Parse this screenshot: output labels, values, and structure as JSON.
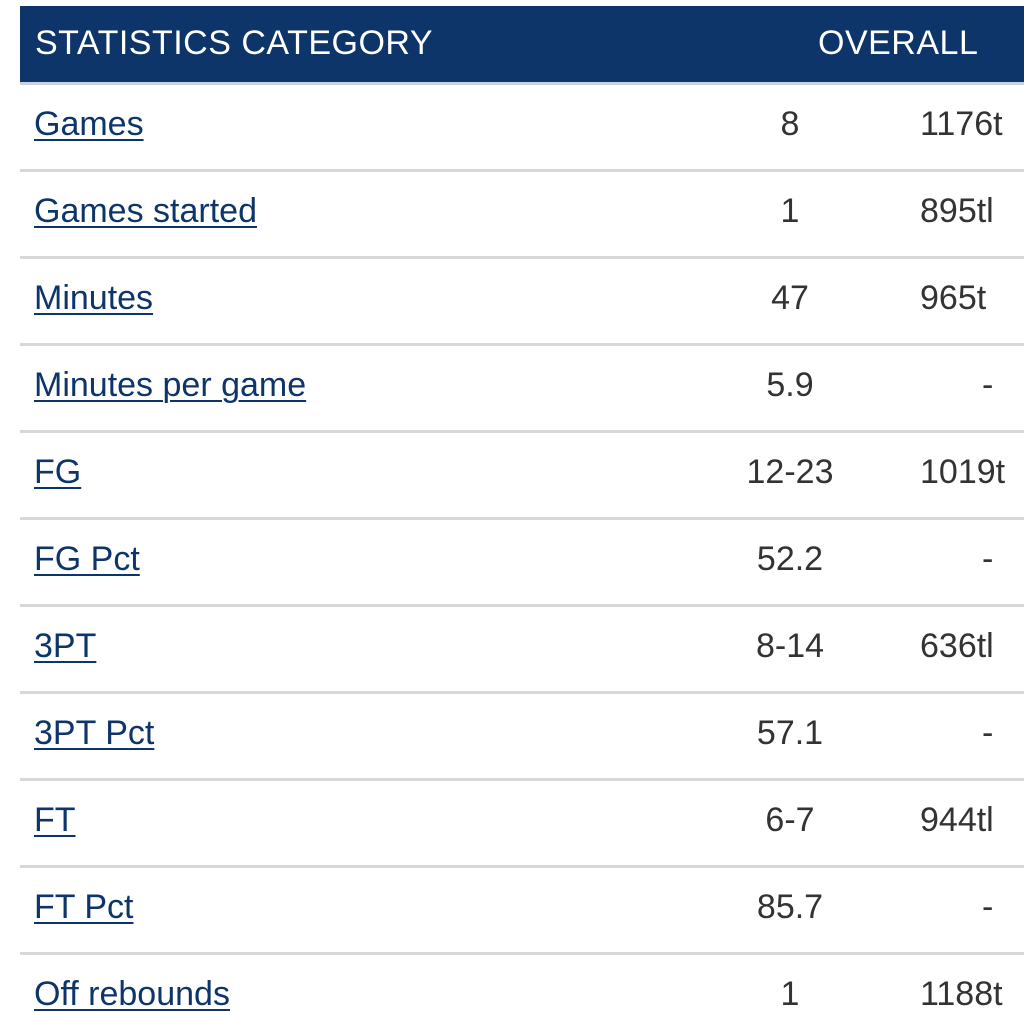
{
  "header": {
    "category_label": "STATISTICS CATEGORY",
    "overall_label": "OVERALL"
  },
  "rows": [
    {
      "category": "Games",
      "value": "8",
      "rank": "1176t"
    },
    {
      "category": "Games started",
      "value": "1",
      "rank": "895tl"
    },
    {
      "category": "Minutes",
      "value": "47",
      "rank": "965t"
    },
    {
      "category": "Minutes per game",
      "value": "5.9",
      "rank": "-"
    },
    {
      "category": "FG",
      "value": "12-23",
      "rank": "1019t"
    },
    {
      "category": "FG Pct",
      "value": "52.2",
      "rank": "-"
    },
    {
      "category": "3PT",
      "value": "8-14",
      "rank": "636tl"
    },
    {
      "category": "3PT Pct",
      "value": "57.1",
      "rank": "-"
    },
    {
      "category": "FT",
      "value": "6-7",
      "rank": "944tl"
    },
    {
      "category": "FT Pct",
      "value": "85.7",
      "rank": "-"
    },
    {
      "category": "Off rebounds",
      "value": "1",
      "rank": "1188t"
    }
  ]
}
